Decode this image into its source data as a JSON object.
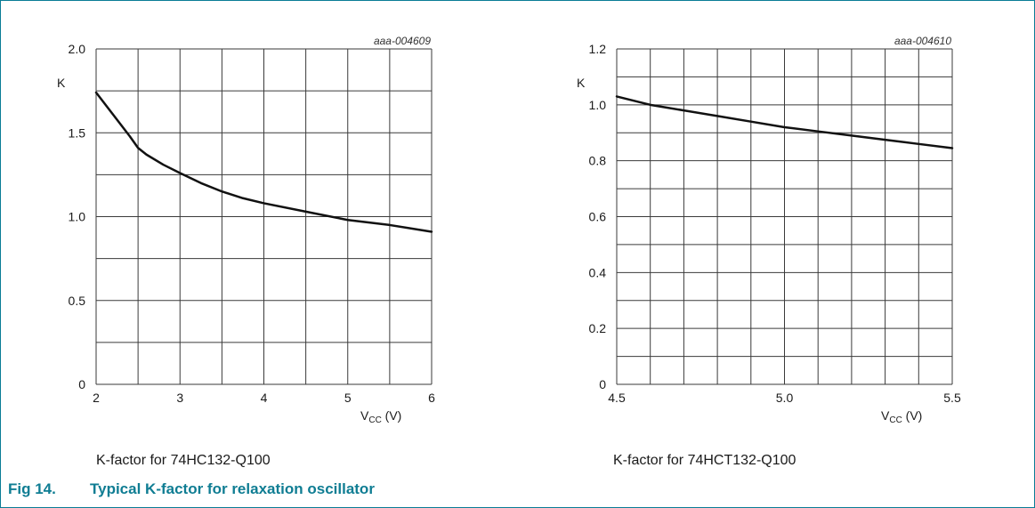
{
  "figure": {
    "number": "Fig 14.",
    "title": "Typical K-factor for relaxation oscillator",
    "border_color": "#0a7d96",
    "caption_color": "#0f7d93"
  },
  "chart_data": [
    {
      "type": "line",
      "id_label": "aaa-004609",
      "ylabel": "K",
      "xlabel": "V",
      "xlabel_sub": "CC",
      "xlabel_unit": " (V)",
      "caption": "K-factor for 74HC132-Q100",
      "xlim": [
        2,
        6
      ],
      "ylim": [
        0,
        2.0
      ],
      "x_ticks": [
        "2",
        "3",
        "4",
        "5",
        "6"
      ],
      "x_tick_values": [
        2,
        3,
        4,
        5,
        6
      ],
      "y_ticks": [
        "0",
        "0.5",
        "1.0",
        "1.5",
        "2.0"
      ],
      "y_tick_values": [
        0,
        0.5,
        1.0,
        1.5,
        2.0
      ],
      "x_grid": [
        2,
        2.5,
        3,
        3.5,
        4,
        4.5,
        5,
        5.5,
        6
      ],
      "y_grid": [
        0,
        0.25,
        0.5,
        0.75,
        1.0,
        1.25,
        1.5,
        1.75,
        2.0
      ],
      "grid": true,
      "series": [
        {
          "x": [
            2.0,
            2.2,
            2.4,
            2.5,
            2.6,
            2.8,
            3.0,
            3.25,
            3.5,
            3.75,
            4.0,
            4.5,
            5.0,
            5.5,
            6.0
          ],
          "y": [
            1.74,
            1.61,
            1.48,
            1.41,
            1.37,
            1.31,
            1.26,
            1.2,
            1.15,
            1.11,
            1.08,
            1.03,
            0.98,
            0.95,
            0.91
          ]
        }
      ]
    },
    {
      "type": "line",
      "id_label": "aaa-004610",
      "ylabel": "K",
      "xlabel": "V",
      "xlabel_sub": "CC",
      "xlabel_unit": " (V)",
      "caption": "K-factor for 74HCT132-Q100",
      "xlim": [
        4.5,
        5.5
      ],
      "ylim": [
        0,
        1.2
      ],
      "x_ticks": [
        "4.5",
        "5.0",
        "5.5"
      ],
      "x_tick_values": [
        4.5,
        5.0,
        5.5
      ],
      "y_ticks": [
        "0",
        "0.2",
        "0.4",
        "0.6",
        "0.8",
        "1.0",
        "1.2"
      ],
      "y_tick_values": [
        0,
        0.2,
        0.4,
        0.6,
        0.8,
        1.0,
        1.2
      ],
      "x_grid": [
        4.5,
        4.6,
        4.7,
        4.8,
        4.9,
        5.0,
        5.1,
        5.2,
        5.3,
        5.4,
        5.5
      ],
      "y_grid": [
        0,
        0.1,
        0.2,
        0.3,
        0.4,
        0.5,
        0.6,
        0.7,
        0.8,
        0.9,
        1.0,
        1.1,
        1.2
      ],
      "grid": true,
      "series": [
        {
          "x": [
            4.5,
            4.6,
            4.7,
            4.8,
            4.9,
            5.0,
            5.1,
            5.2,
            5.3,
            5.4,
            5.5
          ],
          "y": [
            1.03,
            1.0,
            0.98,
            0.96,
            0.94,
            0.92,
            0.905,
            0.89,
            0.875,
            0.86,
            0.845
          ]
        }
      ]
    }
  ]
}
